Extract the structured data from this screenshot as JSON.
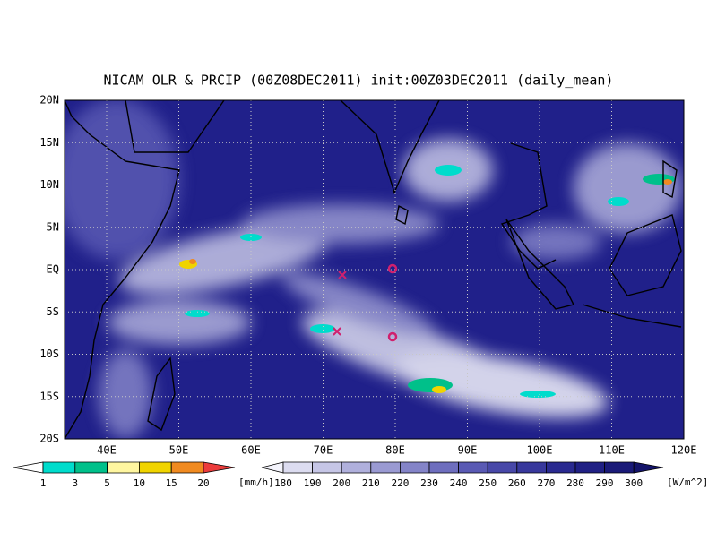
{
  "title": "NICAM OLR & PRCIP (00Z08DEC2011) init:00Z03DEC2011 (daily_mean)",
  "lat_labels": [
    "20N",
    "15N",
    "10N",
    "5N",
    "EQ",
    "5S",
    "10S",
    "15S",
    "20S"
  ],
  "lon_labels": [
    "40E",
    "50E",
    "60E",
    "70E",
    "80E",
    "90E",
    "100E",
    "110E",
    "120E"
  ],
  "precip_colorbar": {
    "labels": [
      "1",
      "3",
      "5",
      "10",
      "15",
      "20"
    ],
    "unit": "[mm/h]",
    "colors": [
      "#ffffff",
      "#00dccc",
      "#00c08a",
      "#fff6a0",
      "#f0d400",
      "#f08a20",
      "#ec3c3c"
    ]
  },
  "olr_colorbar": {
    "labels": [
      "180",
      "190",
      "200",
      "210",
      "220",
      "230",
      "240",
      "250",
      "260",
      "270",
      "280",
      "290",
      "300"
    ],
    "unit": "[W/m^2]",
    "colors": [
      "#f4f4fc",
      "#dcdcf0",
      "#c6c6e6",
      "#b0b0dc",
      "#9a9ad2",
      "#8484c8",
      "#6e6ebe",
      "#5a5ab4",
      "#4848a8",
      "#38389c",
      "#2a2a90",
      "#202084",
      "#1a1a78",
      "#14146a"
    ]
  }
}
